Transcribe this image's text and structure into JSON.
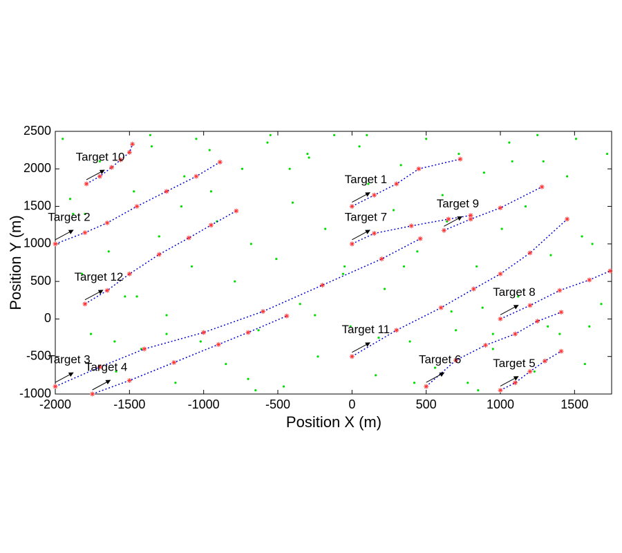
{
  "chart_data": {
    "type": "scatter",
    "xlabel": "Position X (m)",
    "ylabel": "Position Y (m)",
    "xlim": [
      -2000,
      1750
    ],
    "ylim": [
      -1000,
      2500
    ],
    "xticks": [
      -2000,
      -1500,
      -1000,
      -500,
      0,
      500,
      1000,
      1500
    ],
    "yticks": [
      -1000,
      -500,
      0,
      500,
      1000,
      1500,
      2000,
      2500
    ],
    "track_color": "#0000cc",
    "estimate_color": "#ff3333",
    "clutter": {
      "color": "#00dd00",
      "x": [
        -1950,
        -1880,
        -1820,
        -1760,
        -1700,
        -1640,
        -1590,
        -1530,
        -1470,
        -1420,
        -1360,
        -1300,
        -1250,
        -1190,
        -1130,
        -1080,
        -1020,
        -960,
        -910,
        -850,
        -790,
        -740,
        -680,
        -630,
        -570,
        -510,
        -460,
        -400,
        -350,
        -290,
        -230,
        -180,
        -120,
        -60,
        -10,
        50,
        110,
        160,
        220,
        280,
        330,
        390,
        440,
        500,
        560,
        610,
        670,
        720,
        780,
        840,
        890,
        950,
        1010,
        1060,
        1120,
        1170,
        1230,
        1290,
        1340,
        1400,
        1450,
        1510,
        1570,
        1620,
        1680,
        1720,
        -1900,
        -1600,
        -1350,
        -1150,
        -950,
        -700,
        -420,
        -250,
        -50,
        180,
        420,
        640,
        880,
        1080,
        1320,
        1550,
        -1800,
        -1450,
        -1050,
        -650,
        -300,
        100,
        350,
        700,
        950,
        1250,
        1600,
        -1250,
        -550,
        850
      ],
      "y": [
        2400,
        1400,
        600,
        -200,
        2100,
        900,
        -700,
        300,
        1700,
        -400,
        2450,
        1100,
        50,
        -850,
        1900,
        700,
        -300,
        2250,
        1300,
        -600,
        500,
        2000,
        1000,
        -150,
        2350,
        800,
        -900,
        1550,
        200,
        2150,
        -500,
        1200,
        2450,
        600,
        -100,
        2300,
        1800,
        -750,
        400,
        1450,
        2050,
        -300,
        900,
        2400,
        -650,
        1650,
        100,
        2200,
        -850,
        700,
        1950,
        -400,
        1200,
        2350,
        300,
        1500,
        -700,
        2100,
        850,
        -200,
        1900,
        2400,
        -600,
        1000,
        200,
        2200,
        1600,
        -300,
        2300,
        1500,
        1700,
        -800,
        2000,
        50,
        700,
        -250,
        -850,
        1300,
        150,
        2100,
        -100,
        1100,
        1400,
        300,
        2400,
        -950,
        2200,
        2450,
        700,
        -150,
        -200,
        2450,
        -100,
        -200,
        2450,
        -950
      ]
    },
    "series": [
      {
        "name": "Target 1",
        "x": [
          0,
          150,
          300,
          450,
          730
        ],
        "y": [
          1500,
          1650,
          1800,
          2000,
          2130
        ]
      },
      {
        "name": "Target 2",
        "x": [
          -2000,
          -1800,
          -1650,
          -1450,
          -1250,
          -1050,
          -890
        ],
        "y": [
          1000,
          1150,
          1280,
          1500,
          1700,
          1900,
          2090
        ]
      },
      {
        "name": "Target 3",
        "x": [
          -2000,
          -1700,
          -1400,
          -1000,
          -600,
          -200,
          200,
          460
        ],
        "y": [
          -900,
          -640,
          -400,
          -180,
          100,
          450,
          800,
          1070
        ]
      },
      {
        "name": "Target 4",
        "x": [
          -1750,
          -1500,
          -1200,
          -900,
          -700,
          -440
        ],
        "y": [
          -1000,
          -820,
          -580,
          -340,
          -180,
          40
        ]
      },
      {
        "name": "Target 5",
        "x": [
          1000,
          1100,
          1200,
          1300,
          1410
        ],
        "y": [
          -950,
          -850,
          -700,
          -560,
          -430
        ]
      },
      {
        "name": "Target 6",
        "x": [
          500,
          700,
          900,
          1100,
          1250,
          1410
        ],
        "y": [
          -900,
          -550,
          -350,
          -200,
          -30,
          90
        ]
      },
      {
        "name": "Target 7",
        "x": [
          0,
          150,
          400,
          650,
          800
        ],
        "y": [
          1000,
          1140,
          1240,
          1330,
          1380
        ]
      },
      {
        "name": "Target 8",
        "x": [
          1000,
          1200,
          1400,
          1600,
          1740
        ],
        "y": [
          0,
          180,
          380,
          520,
          640
        ]
      },
      {
        "name": "Target 9",
        "x": [
          620,
          800,
          1000,
          1280
        ],
        "y": [
          1180,
          1330,
          1480,
          1760
        ]
      },
      {
        "name": "Target 10",
        "x": [
          -1790,
          -1700,
          -1620,
          -1560,
          -1500,
          -1480
        ],
        "y": [
          1800,
          1900,
          2020,
          2120,
          2220,
          2330
        ]
      },
      {
        "name": "Target 11",
        "x": [
          0,
          300,
          600,
          820,
          1000,
          1200,
          1450
        ],
        "y": [
          -500,
          -150,
          150,
          400,
          600,
          880,
          1330
        ]
      },
      {
        "name": "Target 12",
        "x": [
          -1800,
          -1650,
          -1500,
          -1300,
          -1100,
          -950,
          -780
        ],
        "y": [
          200,
          380,
          600,
          860,
          1080,
          1250,
          1440
        ]
      }
    ]
  }
}
